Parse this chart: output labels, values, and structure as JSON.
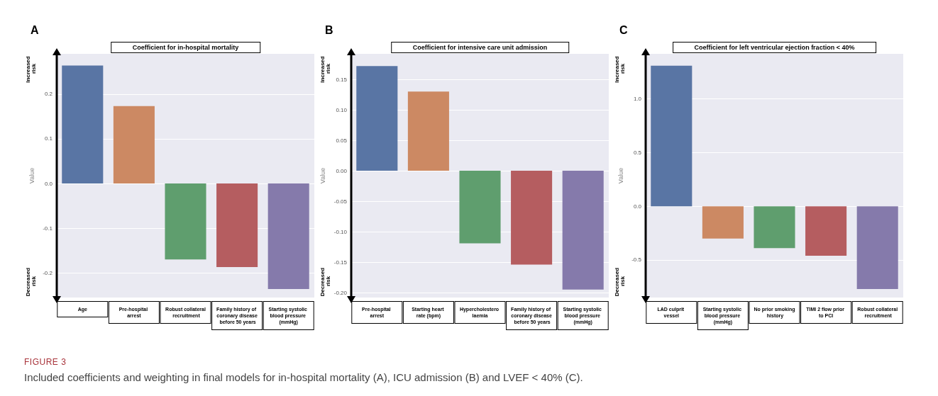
{
  "chart_data": [
    {
      "type": "bar",
      "title": "Coefficient for in-hospital mortality",
      "ylabel": "Value",
      "annotations": [
        "A",
        "Increased risk",
        "Decreased risk",
        "FIGURE 3",
        "Included coefficients and weighting in final models for in-hospital mortality (A), ICU admission (B) and LVEF < 40% (C)."
      ],
      "categories": [
        "Age",
        "Pre-hospital arrest",
        "Robust collateral recruitment",
        "Family history of coronary disease before 50 years",
        "Starting systolic blood pressure (mmHg)"
      ],
      "values": [
        0.264,
        0.173,
        -0.17,
        -0.187,
        -0.236
      ],
      "colors": [
        "#5975a4",
        "#cc8963",
        "#5f9e6e",
        "#b55d60",
        "#857aab"
      ],
      "ylim": [
        -0.255,
        0.29
      ],
      "yticks": [
        {
          "value": -0.2,
          "label": "-0.2"
        },
        {
          "value": -0.1,
          "label": "-0.1"
        },
        {
          "value": 0,
          "label": "0.0"
        },
        0.1,
        0.2
      ],
      "grid": "y"
    },
    {
      "type": "bar",
      "title": "Coefficient for intensive care unit admission",
      "ylabel": "Value",
      "annotations": [
        "B",
        "Increased risk",
        "Decreased risk"
      ],
      "categories": [
        "Pre-hospital arrest",
        "Starting heart rate (bpm)",
        "Hypercholestero laemia",
        "Family history of coronary disease before 50 years",
        "Starting systolic blood pressure (mmHg)"
      ],
      "values": [
        0.172,
        0.13,
        -0.119,
        -0.154,
        -0.195
      ],
      "colors": [
        "#5975a4",
        "#cc8963",
        "#5f9e6e",
        "#b55d60",
        "#857aab"
      ],
      "ylim": [
        -0.208,
        0.192
      ],
      "yticks": [
        {
          "value": -0.2,
          "label": "-0.20"
        },
        -0.15,
        {
          "value": -0.1,
          "label": "-0.10"
        },
        -0.05,
        {
          "value": 0,
          "label": "0.00"
        },
        0.05,
        {
          "value": 0.1,
          "label": "0.10"
        },
        0.15
      ],
      "grid": "y"
    },
    {
      "type": "bar",
      "title": "Coefficient for left ventricular ejection fraction < 40%",
      "ylabel": "Value",
      "annotations": [
        "C",
        "Increased risk",
        "Decreased risk"
      ],
      "categories": [
        "LAD culprit vessel",
        "Starting systolic blood pressure (mmHg)",
        "No prior smoking history",
        "TIMI 2 flow prior to PCI",
        "Robust collateral recruitment"
      ],
      "values": [
        1.31,
        -0.3,
        -0.39,
        -0.46,
        -0.77
      ],
      "colors": [
        "#5975a4",
        "#cc8963",
        "#5f9e6e",
        "#b55d60",
        "#857aab"
      ],
      "ylim": [
        -0.85,
        1.42
      ],
      "yticks": [
        -0.5,
        {
          "value": 0,
          "label": "0.0"
        },
        0.5,
        {
          "value": 1,
          "label": "1.0"
        }
      ],
      "grid": "y"
    }
  ]
}
